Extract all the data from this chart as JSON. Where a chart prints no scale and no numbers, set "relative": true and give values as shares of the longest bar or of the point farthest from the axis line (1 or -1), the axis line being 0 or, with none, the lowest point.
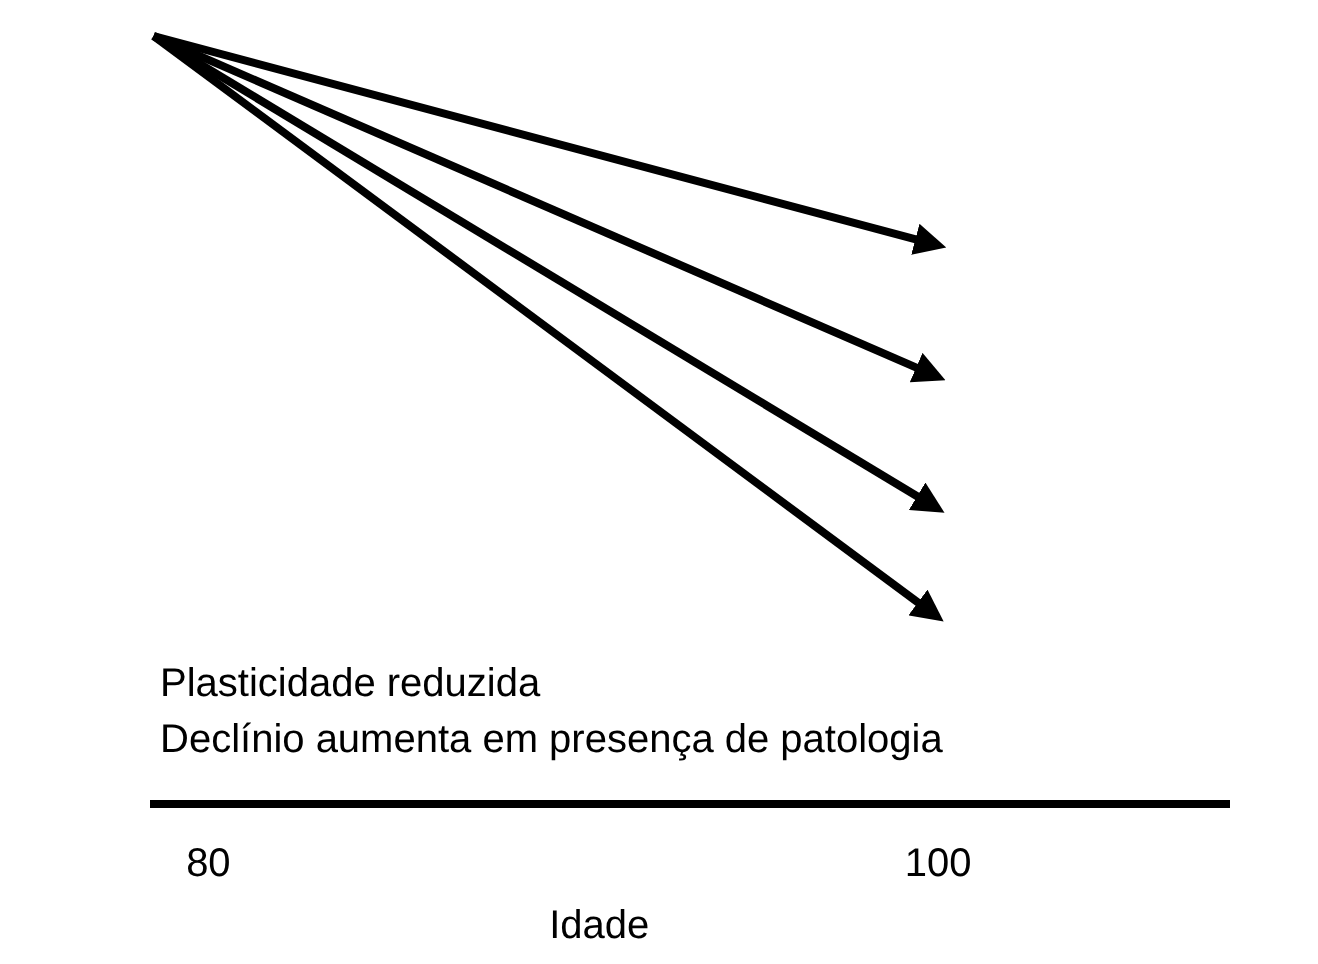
{
  "chart_data": {
    "type": "line",
    "relative": true,
    "xlabel": "Idade",
    "x": [
      78.5,
      99.8
    ],
    "xlim": [
      78.4,
      108
    ],
    "xticks": [
      80,
      100
    ],
    "line_style": "solid",
    "grid": false,
    "series": [
      {
        "color": "#000000",
        "values": [
          1,
          0.73
        ]
      },
      {
        "color": "#000000",
        "values": [
          1,
          0.56
        ]
      },
      {
        "color": "#000000",
        "values": [
          1,
          0.39
        ]
      },
      {
        "color": "#000000",
        "values": [
          1,
          0.25
        ]
      }
    ],
    "annotations": [
      "Plasticidade reduzida",
      "Declínio aumenta em presença de patologia"
    ]
  }
}
